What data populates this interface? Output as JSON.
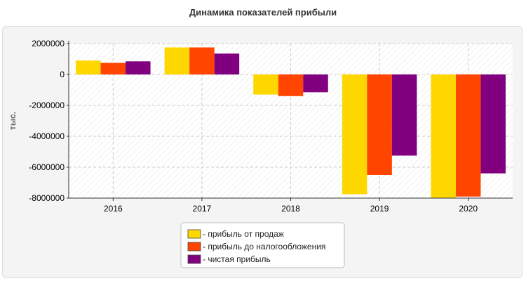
{
  "title": "Динамика показателей прибыли",
  "chart_data": {
    "type": "bar",
    "title": "Динамика показателей прибыли",
    "xlabel": "",
    "ylabel": "тыс.",
    "categories": [
      "2016",
      "2017",
      "2018",
      "2019",
      "2020"
    ],
    "ylim": [
      -8000000,
      2000000
    ],
    "yticks": [
      2000000,
      0,
      -2000000,
      -4000000,
      -6000000,
      -8000000
    ],
    "ytick_labels": [
      "2000000",
      "0",
      "-2000000",
      "-4000000",
      "-6000000",
      "-8000000"
    ],
    "grid": true,
    "legend_position": "bottom",
    "series": [
      {
        "name": "- прибыль от продаж",
        "color": "#ffd700",
        "values": [
          900000,
          1750000,
          -1300000,
          -7750000,
          -8000000
        ]
      },
      {
        "name": "- прибыль до налогообложения",
        "color": "#ff4500",
        "values": [
          750000,
          1750000,
          -1400000,
          -6500000,
          -7900000
        ]
      },
      {
        "name": "- чистая прибыль",
        "color": "#800080",
        "values": [
          850000,
          1350000,
          -1150000,
          -5250000,
          -6400000
        ]
      }
    ]
  }
}
